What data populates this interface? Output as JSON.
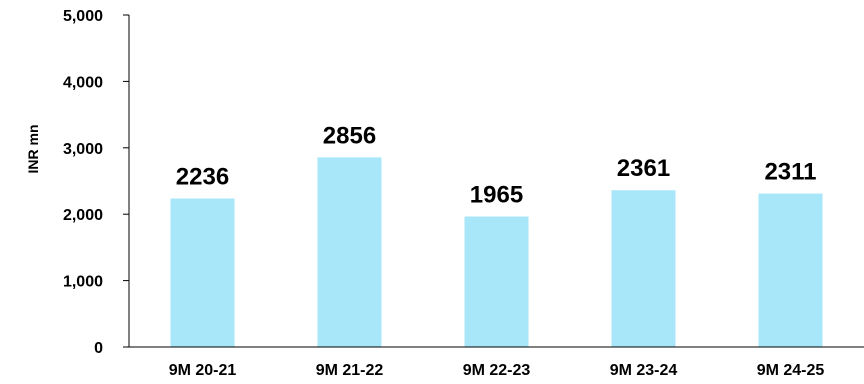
{
  "chart_data": {
    "type": "bar",
    "categories": [
      "9M 20-21",
      "9M 21-22",
      "9M 22-23",
      "9M 23-24",
      "9M 24-25"
    ],
    "values": [
      2236,
      2856,
      1965,
      2361,
      2311
    ],
    "data_labels": [
      "2236",
      "2856",
      "1965",
      "2361",
      "2311"
    ],
    "ylabel": "INR mn",
    "ylim": [
      0,
      5000
    ],
    "yticks": [
      0,
      1000,
      2000,
      3000,
      4000,
      5000
    ],
    "ytick_labels": [
      "0",
      "1,000",
      "2,000",
      "3,000",
      "4,000",
      "5,000"
    ],
    "grid": false,
    "legend": false,
    "bar_color": "#a8e6fa"
  }
}
